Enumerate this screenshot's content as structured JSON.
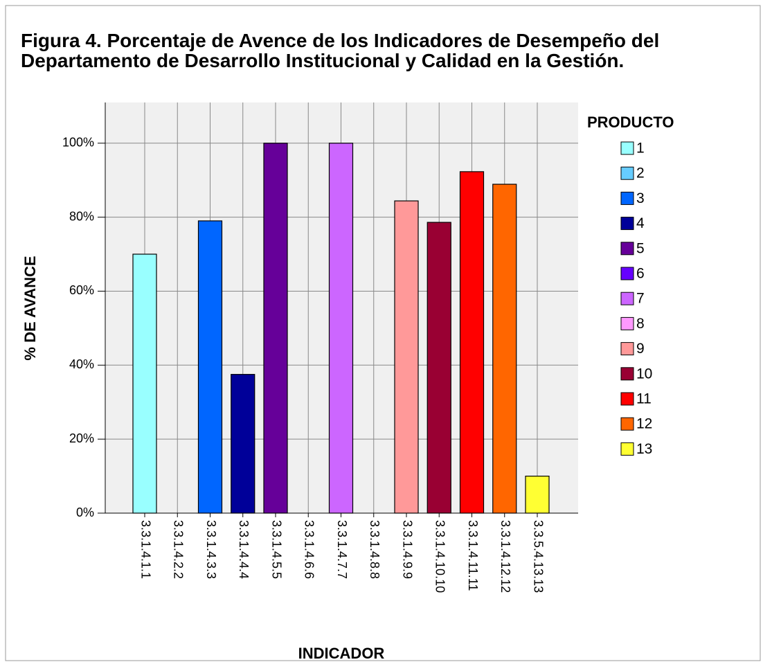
{
  "chart_data": {
    "type": "bar",
    "title": "Figura 4. Porcentaje de Avence de los Indicadores de Desempeño del Departamento de Desarrollo Institucional y Calidad en la Gestión.",
    "x_label": "INDICADOR",
    "y_label": "% DE AVANCE",
    "categories": [
      "3.3.1.4.1.1",
      "3.3.1.4.2.2",
      "3.3.1.4.3.3",
      "3.3.1.4.4.4",
      "3.3.1.4.5.5",
      "3.3.1.4.6.6",
      "3.3.1.4.7.7",
      "3.3.1.4.8.8",
      "3.3.1.4.9.9",
      "3.3.1.4.10.10",
      "3.3.1.4.11.11",
      "3.3.1.4.12.12",
      "3.3.5.4.13.13"
    ],
    "values": [
      70,
      0,
      79,
      37.5,
      100,
      0,
      100,
      0,
      84.4,
      78.6,
      92.3,
      88.9,
      10
    ],
    "colors": [
      "#99ffff",
      "#66ccff",
      "#0066ff",
      "#000099",
      "#660099",
      "#6600ff",
      "#cc66ff",
      "#ff99ff",
      "#ff9999",
      "#990033",
      "#ff0000",
      "#ff6600",
      "#ffff33"
    ],
    "legend": {
      "title": "PRODUCTO",
      "labels": [
        "1",
        "2",
        "3",
        "4",
        "5",
        "6",
        "7",
        "8",
        "9",
        "10",
        "11",
        "12",
        "13"
      ]
    },
    "ylim": [
      0,
      111
    ],
    "yticks": [
      {
        "value": 0,
        "label": "0%"
      },
      {
        "value": 20,
        "label": "20%"
      },
      {
        "value": 40,
        "label": "40%"
      },
      {
        "value": 60,
        "label": "60%"
      },
      {
        "value": 80,
        "label": "80%"
      },
      {
        "value": 100,
        "label": "100%"
      }
    ],
    "grid": true
  }
}
